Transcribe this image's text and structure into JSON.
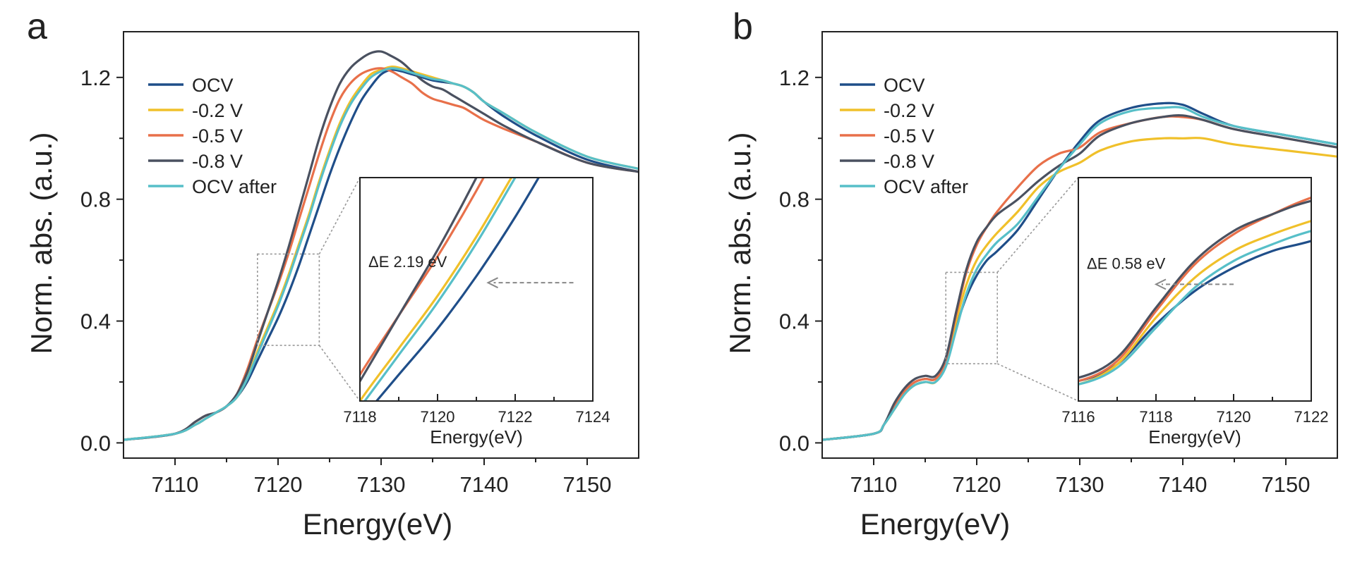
{
  "colors": {
    "OCV": "#1f4e89",
    "-0.2 V": "#f0c02a",
    "-0.5 V": "#e8704a",
    "-0.8 V": "#4a5160",
    "OCV after": "#57bfc8",
    "zoom_box": "#999999",
    "delta_arrow": "#888888"
  },
  "chart_data": [
    {
      "type": "line",
      "panel": "a",
      "xlabel": "Energy(eV)",
      "ylabel": "Norm. abs. (a.u.)",
      "xlim": [
        7105,
        7155
      ],
      "ylim": [
        -0.05,
        1.35
      ],
      "xticks": [
        7110,
        7120,
        7130,
        7140,
        7150
      ],
      "xtick_labels": [
        "7110",
        "7120",
        "7130",
        "7140",
        "7150"
      ],
      "yticks": [
        0.0,
        0.4,
        0.8,
        1.2
      ],
      "ytick_labels": [
        "0.0",
        "0.4",
        "0.8",
        "1.2"
      ],
      "legend": [
        "OCV",
        "-0.2 V",
        "-0.5 V",
        "-0.8 V",
        "OCV after"
      ],
      "legend_position": "top-left",
      "series": [
        {
          "name": "OCV",
          "x": [
            7105,
            7110,
            7112,
            7113,
            7114,
            7115,
            7116,
            7117,
            7118,
            7119,
            7120,
            7121,
            7122,
            7123,
            7124,
            7125,
            7126,
            7127,
            7128,
            7129,
            7130,
            7131,
            7132,
            7133,
            7134,
            7135,
            7136,
            7137,
            7138,
            7139,
            7140,
            7142,
            7145,
            7150,
            7155
          ],
          "y": [
            0.01,
            0.03,
            0.06,
            0.08,
            0.1,
            0.12,
            0.15,
            0.2,
            0.27,
            0.34,
            0.41,
            0.49,
            0.58,
            0.68,
            0.78,
            0.88,
            0.97,
            1.05,
            1.12,
            1.17,
            1.21,
            1.225,
            1.22,
            1.21,
            1.2,
            1.19,
            1.185,
            1.18,
            1.17,
            1.15,
            1.12,
            1.07,
            1.01,
            0.93,
            0.89
          ]
        },
        {
          "name": "-0.2 V",
          "x": [
            7105,
            7110,
            7112,
            7113,
            7114,
            7115,
            7116,
            7117,
            7118,
            7119,
            7120,
            7121,
            7122,
            7123,
            7124,
            7125,
            7126,
            7127,
            7128,
            7129,
            7130,
            7131,
            7132,
            7133,
            7134,
            7135,
            7136,
            7137,
            7138,
            7139,
            7140,
            7142,
            7145,
            7150,
            7155
          ],
          "y": [
            0.01,
            0.03,
            0.06,
            0.08,
            0.1,
            0.12,
            0.15,
            0.21,
            0.3,
            0.38,
            0.46,
            0.55,
            0.65,
            0.75,
            0.86,
            0.96,
            1.05,
            1.12,
            1.17,
            1.21,
            1.225,
            1.235,
            1.23,
            1.22,
            1.21,
            1.2,
            1.19,
            1.18,
            1.17,
            1.15,
            1.12,
            1.08,
            1.02,
            0.94,
            0.9
          ]
        },
        {
          "name": "-0.5 V",
          "x": [
            7105,
            7110,
            7112,
            7113,
            7114,
            7115,
            7116,
            7117,
            7118,
            7119,
            7120,
            7121,
            7122,
            7123,
            7124,
            7125,
            7126,
            7127,
            7128,
            7129,
            7130,
            7131,
            7132,
            7133,
            7134,
            7135,
            7136,
            7137,
            7138,
            7139,
            7140,
            7142,
            7145,
            7150,
            7155
          ],
          "y": [
            0.01,
            0.03,
            0.07,
            0.09,
            0.1,
            0.12,
            0.16,
            0.24,
            0.34,
            0.43,
            0.52,
            0.62,
            0.73,
            0.84,
            0.95,
            1.05,
            1.13,
            1.18,
            1.21,
            1.225,
            1.23,
            1.22,
            1.2,
            1.18,
            1.15,
            1.13,
            1.12,
            1.11,
            1.1,
            1.08,
            1.06,
            1.03,
            0.99,
            0.92,
            0.89
          ]
        },
        {
          "name": "-0.8 V",
          "x": [
            7105,
            7110,
            7112,
            7113,
            7114,
            7115,
            7116,
            7117,
            7118,
            7119,
            7120,
            7121,
            7122,
            7123,
            7124,
            7125,
            7126,
            7127,
            7128,
            7129,
            7130,
            7131,
            7132,
            7133,
            7134,
            7135,
            7136,
            7137,
            7138,
            7139,
            7140,
            7142,
            7145,
            7150,
            7155
          ],
          "y": [
            0.01,
            0.03,
            0.07,
            0.09,
            0.1,
            0.12,
            0.16,
            0.23,
            0.33,
            0.43,
            0.53,
            0.64,
            0.76,
            0.88,
            1.0,
            1.1,
            1.18,
            1.23,
            1.26,
            1.28,
            1.285,
            1.27,
            1.25,
            1.22,
            1.19,
            1.17,
            1.16,
            1.14,
            1.12,
            1.1,
            1.08,
            1.04,
            0.99,
            0.92,
            0.89
          ]
        },
        {
          "name": "OCV after",
          "x": [
            7105,
            7110,
            7112,
            7113,
            7114,
            7115,
            7116,
            7117,
            7118,
            7119,
            7120,
            7121,
            7122,
            7123,
            7124,
            7125,
            7126,
            7127,
            7128,
            7129,
            7130,
            7131,
            7132,
            7133,
            7134,
            7135,
            7136,
            7137,
            7138,
            7139,
            7140,
            7142,
            7145,
            7150,
            7155
          ],
          "y": [
            0.01,
            0.03,
            0.06,
            0.08,
            0.1,
            0.12,
            0.15,
            0.21,
            0.29,
            0.37,
            0.45,
            0.54,
            0.64,
            0.74,
            0.85,
            0.95,
            1.04,
            1.11,
            1.16,
            1.2,
            1.22,
            1.23,
            1.225,
            1.215,
            1.205,
            1.195,
            1.19,
            1.18,
            1.17,
            1.15,
            1.12,
            1.08,
            1.02,
            0.94,
            0.9
          ]
        }
      ],
      "zoom_region": {
        "x": [
          7118,
          7124
        ],
        "y": [
          0.32,
          0.62
        ]
      },
      "inset": {
        "xlim": [
          7118,
          7124
        ],
        "ylim": [
          0.3,
          0.64
        ],
        "xticks": [
          7118,
          7120,
          7122,
          7124
        ],
        "xtick_labels": [
          "7118",
          "7120",
          "7122",
          "7124"
        ],
        "xlabel": "Energy(eV)",
        "annotation": "ΔE 2.19 eV",
        "arrow": {
          "from_x": 7123.5,
          "to_x": 7121.3,
          "y": 0.48
        }
      }
    },
    {
      "type": "line",
      "panel": "b",
      "xlabel": "Energy(eV)",
      "ylabel": "Norm. abs. (a.u.)",
      "xlim": [
        7105,
        7155
      ],
      "ylim": [
        -0.05,
        1.35
      ],
      "xticks": [
        7110,
        7120,
        7130,
        7140,
        7150
      ],
      "xtick_labels": [
        "7110",
        "7120",
        "7130",
        "7140",
        "7150"
      ],
      "yticks": [
        0.0,
        0.4,
        0.8,
        1.2
      ],
      "ytick_labels": [
        "0.0",
        "0.4",
        "0.8",
        "1.2"
      ],
      "legend": [
        "OCV",
        "-0.2 V",
        "-0.5 V",
        "-0.8 V",
        "OCV after"
      ],
      "legend_position": "top-left",
      "series": [
        {
          "name": "OCV",
          "x": [
            7105,
            7110,
            7111,
            7112,
            7113,
            7114,
            7115,
            7116,
            7117,
            7118,
            7119,
            7120,
            7121,
            7122,
            7124,
            7126,
            7128,
            7130,
            7132,
            7135,
            7138,
            7140,
            7142,
            7145,
            7150,
            7155
          ],
          "y": [
            0.01,
            0.03,
            0.06,
            0.12,
            0.17,
            0.2,
            0.21,
            0.21,
            0.26,
            0.38,
            0.48,
            0.55,
            0.6,
            0.63,
            0.7,
            0.8,
            0.9,
            0.99,
            1.06,
            1.1,
            1.115,
            1.11,
            1.08,
            1.04,
            1.01,
            0.98
          ]
        },
        {
          "name": "-0.2 V",
          "x": [
            7105,
            7110,
            7111,
            7112,
            7113,
            7114,
            7115,
            7116,
            7117,
            7118,
            7119,
            7120,
            7121,
            7122,
            7124,
            7126,
            7128,
            7130,
            7132,
            7135,
            7138,
            7140,
            7142,
            7145,
            7150,
            7155
          ],
          "y": [
            0.01,
            0.03,
            0.06,
            0.11,
            0.16,
            0.19,
            0.2,
            0.2,
            0.26,
            0.4,
            0.52,
            0.6,
            0.65,
            0.69,
            0.76,
            0.84,
            0.89,
            0.92,
            0.96,
            0.99,
            1.0,
            1.0,
            1.0,
            0.98,
            0.96,
            0.94
          ]
        },
        {
          "name": "-0.5 V",
          "x": [
            7105,
            7110,
            7111,
            7112,
            7113,
            7114,
            7115,
            7116,
            7117,
            7118,
            7119,
            7120,
            7121,
            7122,
            7124,
            7126,
            7128,
            7130,
            7132,
            7135,
            7138,
            7140,
            7142,
            7145,
            7150,
            7155
          ],
          "y": [
            0.01,
            0.03,
            0.06,
            0.12,
            0.17,
            0.2,
            0.21,
            0.21,
            0.27,
            0.42,
            0.56,
            0.65,
            0.71,
            0.76,
            0.84,
            0.91,
            0.95,
            0.97,
            1.02,
            1.05,
            1.07,
            1.07,
            1.06,
            1.03,
            1.0,
            0.97
          ]
        },
        {
          "name": "-0.8 V",
          "x": [
            7105,
            7110,
            7111,
            7112,
            7113,
            7114,
            7115,
            7116,
            7117,
            7118,
            7119,
            7120,
            7121,
            7122,
            7124,
            7126,
            7128,
            7130,
            7132,
            7135,
            7138,
            7140,
            7142,
            7145,
            7150,
            7155
          ],
          "y": [
            0.01,
            0.03,
            0.06,
            0.13,
            0.18,
            0.21,
            0.22,
            0.22,
            0.28,
            0.43,
            0.57,
            0.66,
            0.71,
            0.75,
            0.8,
            0.86,
            0.91,
            0.95,
            1.01,
            1.05,
            1.07,
            1.075,
            1.06,
            1.03,
            1.0,
            0.97
          ]
        },
        {
          "name": "OCV after",
          "x": [
            7105,
            7110,
            7111,
            7112,
            7113,
            7114,
            7115,
            7116,
            7117,
            7118,
            7119,
            7120,
            7121,
            7122,
            7124,
            7126,
            7128,
            7130,
            7132,
            7135,
            7138,
            7140,
            7142,
            7145,
            7150,
            7155
          ],
          "y": [
            0.01,
            0.03,
            0.06,
            0.11,
            0.16,
            0.19,
            0.2,
            0.2,
            0.25,
            0.37,
            0.49,
            0.57,
            0.62,
            0.66,
            0.72,
            0.81,
            0.9,
            0.98,
            1.05,
            1.09,
            1.1,
            1.1,
            1.07,
            1.04,
            1.01,
            0.98
          ]
        }
      ],
      "zoom_region": {
        "x": [
          7117,
          7122
        ],
        "y": [
          0.26,
          0.56
        ]
      },
      "inset": {
        "xlim": [
          7116,
          7122
        ],
        "ylim": [
          0.15,
          0.82
        ],
        "xticks": [
          7116,
          7118,
          7120,
          7122
        ],
        "xtick_labels": [
          "7116",
          "7118",
          "7120",
          "7122"
        ],
        "xlabel": "Energy(eV)",
        "annotation": "ΔE 0.58 eV",
        "arrow": {
          "from_x": 7120.0,
          "to_x": 7118.0,
          "y": 0.5
        }
      }
    }
  ]
}
